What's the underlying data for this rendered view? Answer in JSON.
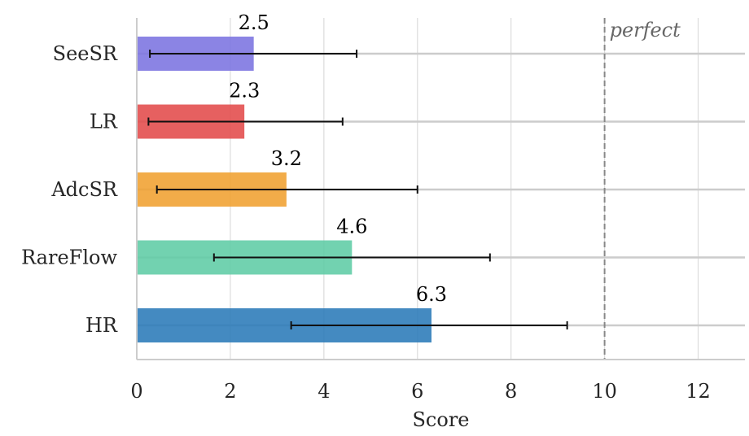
{
  "chart_data": {
    "type": "bar",
    "orientation": "horizontal",
    "categories": [
      "SeeSR",
      "LR",
      "AdcSR",
      "RareFlow",
      "HR"
    ],
    "values": [
      2.5,
      2.3,
      3.2,
      4.6,
      6.3
    ],
    "value_labels": [
      "2.5",
      "2.3",
      "3.2",
      "4.6",
      "6.3"
    ],
    "error_low": [
      0.28,
      0.25,
      0.43,
      1.65,
      3.3
    ],
    "error_high": [
      4.7,
      4.4,
      6.0,
      7.55,
      9.2
    ],
    "colors": [
      "#7b73e0",
      "#e34a4a",
      "#f0a030",
      "#5fcca5",
      "#2a7ab8"
    ],
    "xlabel": "Score",
    "ylabel": "",
    "xlim": [
      0,
      13
    ],
    "xticks": [
      0,
      2,
      4,
      6,
      8,
      10,
      12
    ],
    "xtick_labels": [
      "0",
      "2",
      "4",
      "6",
      "8",
      "10",
      "12"
    ],
    "grid": true,
    "reference_line": {
      "x": 10,
      "label": "perfect",
      "style": "dashed"
    }
  }
}
